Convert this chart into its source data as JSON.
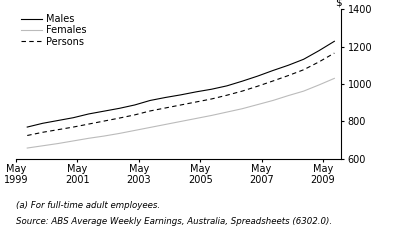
{
  "title": "",
  "ylabel": "$",
  "ylim": [
    600,
    1400
  ],
  "yticks": [
    600,
    800,
    1000,
    1200,
    1400
  ],
  "xlim_start": 1999.2,
  "xlim_end": 2009.6,
  "xtick_years": [
    1999,
    2001,
    2003,
    2005,
    2007,
    2009
  ],
  "footnote1": "(a) For full-time adult employees.",
  "footnote2": "Source: ABS Average Weekly Earnings, Australia, Spreadsheets (6302.0).",
  "legend_items": [
    "Males",
    "Females",
    "Persons"
  ],
  "males": {
    "x": [
      1999.37,
      1999.87,
      2000.37,
      2000.87,
      2001.37,
      2001.87,
      2002.37,
      2002.87,
      2003.37,
      2003.87,
      2004.37,
      2004.87,
      2005.37,
      2005.87,
      2006.37,
      2006.87,
      2007.37,
      2007.87,
      2008.37,
      2008.87,
      2009.37
    ],
    "y": [
      770,
      790,
      805,
      820,
      840,
      855,
      870,
      888,
      912,
      928,
      942,
      958,
      972,
      990,
      1015,
      1042,
      1072,
      1100,
      1132,
      1178,
      1228
    ],
    "color": "#000000",
    "linestyle": "solid",
    "linewidth": 0.8
  },
  "females": {
    "x": [
      1999.37,
      1999.87,
      2000.37,
      2000.87,
      2001.37,
      2001.87,
      2002.37,
      2002.87,
      2003.37,
      2003.87,
      2004.37,
      2004.87,
      2005.37,
      2005.87,
      2006.37,
      2006.87,
      2007.37,
      2007.87,
      2008.37,
      2008.87,
      2009.37
    ],
    "y": [
      658,
      670,
      682,
      696,
      710,
      722,
      736,
      752,
      768,
      784,
      800,
      816,
      832,
      850,
      868,
      890,
      912,
      938,
      962,
      995,
      1030
    ],
    "color": "#bbbbbb",
    "linestyle": "solid",
    "linewidth": 0.8
  },
  "persons": {
    "x": [
      1999.37,
      1999.87,
      2000.37,
      2000.87,
      2001.37,
      2001.87,
      2002.37,
      2002.87,
      2003.37,
      2003.87,
      2004.37,
      2004.87,
      2005.37,
      2005.87,
      2006.37,
      2006.87,
      2007.37,
      2007.87,
      2008.37,
      2008.87,
      2009.37
    ],
    "y": [
      725,
      742,
      756,
      770,
      786,
      802,
      818,
      835,
      856,
      872,
      888,
      904,
      920,
      940,
      962,
      988,
      1016,
      1045,
      1076,
      1118,
      1165
    ],
    "color": "#000000",
    "linestyle": "dashed",
    "linewidth": 0.8
  }
}
